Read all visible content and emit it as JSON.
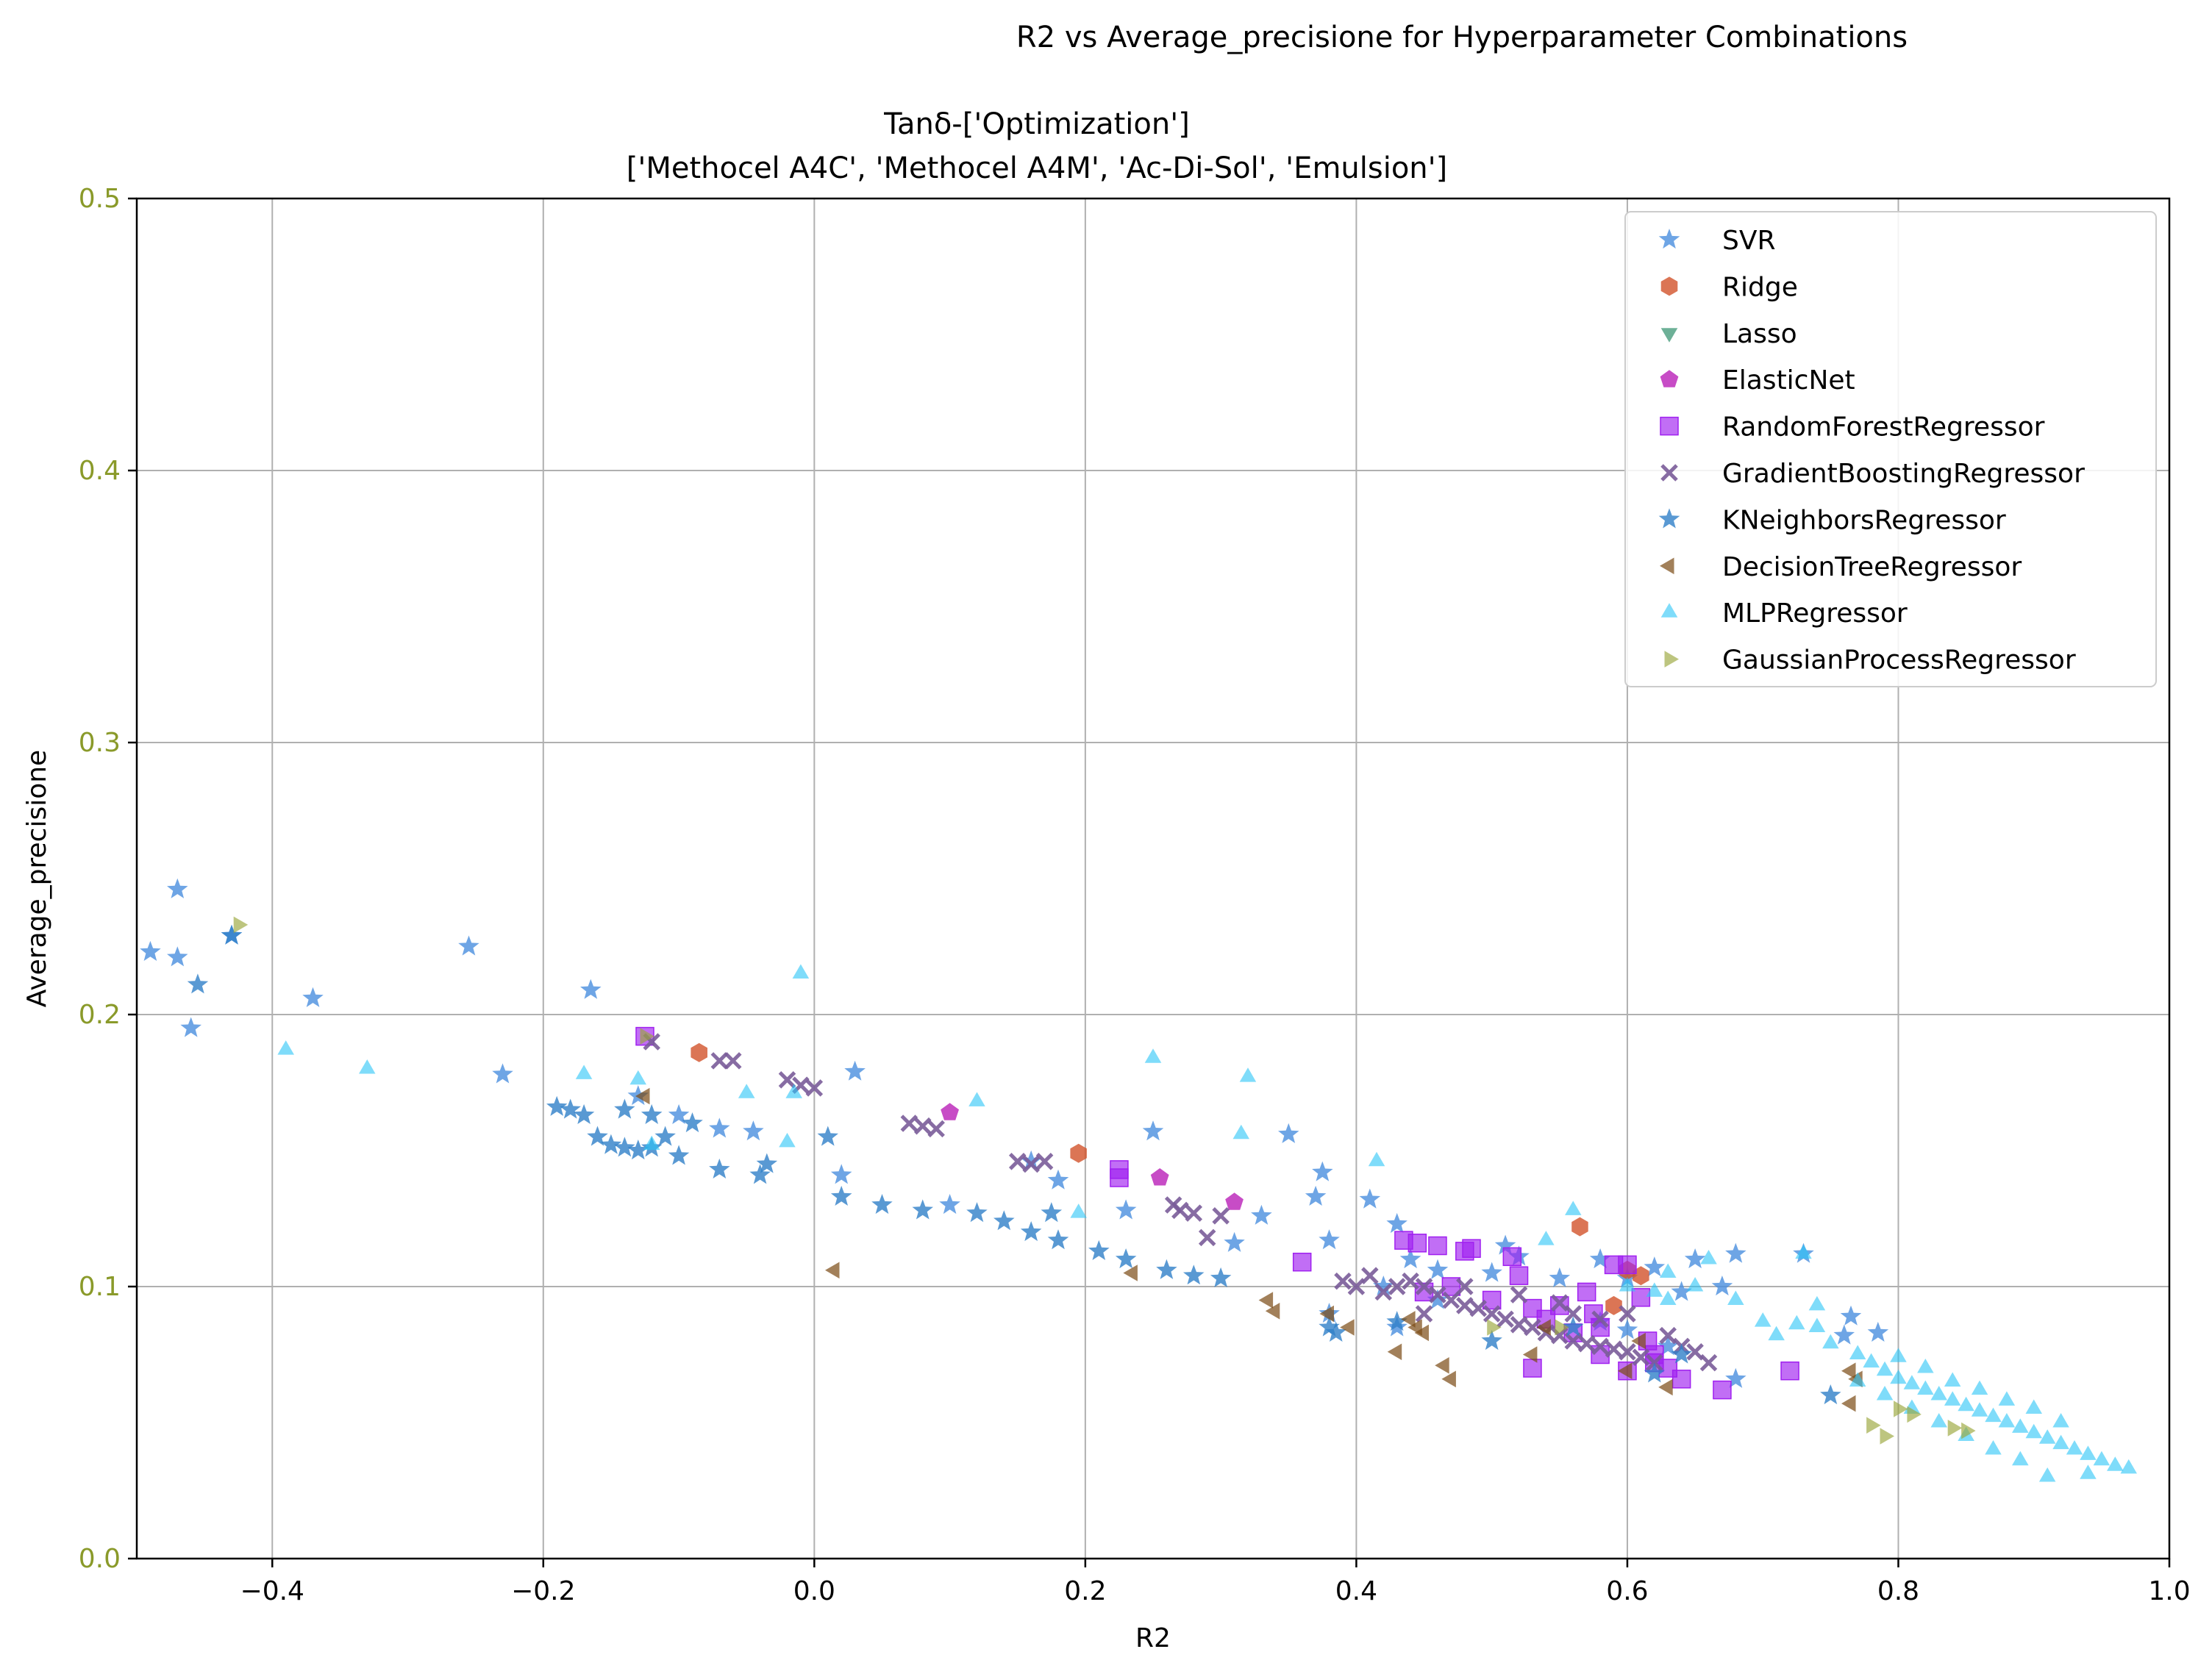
{
  "figure": {
    "suptitle": "R2 vs Average_precisione for Hyperparameter Combinations"
  },
  "chart_data": {
    "type": "scatter",
    "title_line1": "Tanδ-['Optimization']",
    "title_line2": "['Methocel A4C', 'Methocel A4M', 'Ac-Di-Sol', 'Emulsion']",
    "xlabel": "R2",
    "ylabel": "Average_precisione",
    "xlim": [
      -0.5,
      1.0
    ],
    "ylim": [
      0.0,
      0.5
    ],
    "xticks": [
      -0.4,
      -0.2,
      0.0,
      0.2,
      0.4,
      0.6,
      0.8,
      1.0
    ],
    "xtick_labels": [
      "−0.4",
      "−0.2",
      "0.0",
      "0.2",
      "0.4",
      "0.6",
      "0.8",
      "1.0"
    ],
    "yticks": [
      0.0,
      0.1,
      0.2,
      0.3,
      0.4,
      0.5
    ],
    "ytick_labels": [
      "0.0",
      "0.1",
      "0.2",
      "0.3",
      "0.4",
      "0.5"
    ],
    "ytick_color": "#8a9a2a",
    "grid": true,
    "legend_position": "top-right",
    "series": [
      {
        "name": "SVR",
        "marker": "star",
        "color": "#4a8fdf",
        "points": [
          [
            -0.49,
            0.223
          ],
          [
            -0.47,
            0.246
          ],
          [
            -0.47,
            0.221
          ],
          [
            -0.46,
            0.195
          ],
          [
            -0.43,
            0.229
          ],
          [
            -0.37,
            0.206
          ],
          [
            -0.255,
            0.225
          ],
          [
            -0.23,
            0.178
          ],
          [
            -0.165,
            0.209
          ],
          [
            -0.13,
            0.17
          ],
          [
            -0.1,
            0.163
          ],
          [
            -0.07,
            0.158
          ],
          [
            -0.045,
            0.157
          ],
          [
            0.03,
            0.179
          ],
          [
            0.02,
            0.141
          ],
          [
            0.1,
            0.13
          ],
          [
            0.16,
            0.146
          ],
          [
            0.18,
            0.139
          ],
          [
            0.25,
            0.157
          ],
          [
            0.23,
            0.128
          ],
          [
            0.31,
            0.116
          ],
          [
            0.33,
            0.126
          ],
          [
            0.35,
            0.156
          ],
          [
            0.37,
            0.133
          ],
          [
            0.375,
            0.142
          ],
          [
            0.38,
            0.117
          ],
          [
            0.41,
            0.132
          ],
          [
            0.43,
            0.123
          ],
          [
            0.42,
            0.1
          ],
          [
            0.44,
            0.11
          ],
          [
            0.46,
            0.106
          ],
          [
            0.5,
            0.105
          ],
          [
            0.51,
            0.115
          ],
          [
            0.52,
            0.111
          ],
          [
            0.55,
            0.103
          ],
          [
            0.58,
            0.11
          ],
          [
            0.6,
            0.103
          ],
          [
            0.62,
            0.107
          ],
          [
            0.64,
            0.098
          ],
          [
            0.65,
            0.11
          ],
          [
            0.67,
            0.1
          ],
          [
            0.68,
            0.112
          ],
          [
            0.73,
            0.112
          ],
          [
            0.76,
            0.082
          ],
          [
            0.765,
            0.089
          ],
          [
            0.785,
            0.083
          ],
          [
            0.46,
            0.095
          ],
          [
            0.38,
            0.09
          ],
          [
            0.43,
            0.085
          ],
          [
            0.58,
            0.087
          ],
          [
            0.6,
            0.084
          ],
          [
            0.63,
            0.078
          ],
          [
            0.68,
            0.066
          ]
        ]
      },
      {
        "name": "Ridge",
        "marker": "hexagon",
        "color": "#d2522a",
        "points": [
          [
            -0.085,
            0.186
          ],
          [
            0.195,
            0.149
          ],
          [
            0.565,
            0.122
          ],
          [
            0.59,
            0.093
          ],
          [
            0.6,
            0.106
          ],
          [
            0.61,
            0.104
          ]
        ]
      },
      {
        "name": "Lasso",
        "marker": "triangle-down",
        "color": "#2f8e6b",
        "points": []
      },
      {
        "name": "ElasticNet",
        "marker": "pentagon",
        "color": "#b91fb8",
        "points": [
          [
            0.1,
            0.164
          ],
          [
            0.255,
            0.14
          ],
          [
            0.31,
            0.131
          ]
        ]
      },
      {
        "name": "RandomForestRegressor",
        "marker": "square",
        "color": "#a020f0",
        "points": [
          [
            -0.125,
            0.192
          ],
          [
            0.225,
            0.143
          ],
          [
            0.225,
            0.14
          ],
          [
            0.36,
            0.109
          ],
          [
            0.435,
            0.117
          ],
          [
            0.445,
            0.116
          ],
          [
            0.46,
            0.115
          ],
          [
            0.48,
            0.113
          ],
          [
            0.485,
            0.114
          ],
          [
            0.515,
            0.111
          ],
          [
            0.52,
            0.104
          ],
          [
            0.45,
            0.098
          ],
          [
            0.5,
            0.095
          ],
          [
            0.53,
            0.092
          ],
          [
            0.54,
            0.088
          ],
          [
            0.55,
            0.093
          ],
          [
            0.57,
            0.098
          ],
          [
            0.575,
            0.09
          ],
          [
            0.58,
            0.085
          ],
          [
            0.59,
            0.108
          ],
          [
            0.6,
            0.108
          ],
          [
            0.61,
            0.096
          ],
          [
            0.615,
            0.08
          ],
          [
            0.62,
            0.075
          ],
          [
            0.63,
            0.07
          ],
          [
            0.64,
            0.066
          ],
          [
            0.67,
            0.062
          ],
          [
            0.72,
            0.069
          ],
          [
            0.53,
            0.07
          ],
          [
            0.6,
            0.069
          ],
          [
            0.62,
            0.072
          ],
          [
            0.56,
            0.083
          ],
          [
            0.58,
            0.075
          ],
          [
            0.47,
            0.1
          ]
        ]
      },
      {
        "name": "GradientBoostingRegressor",
        "marker": "x",
        "color": "#7a5c99",
        "points": [
          [
            -0.12,
            0.19
          ],
          [
            -0.07,
            0.183
          ],
          [
            -0.06,
            0.183
          ],
          [
            -0.02,
            0.176
          ],
          [
            -0.01,
            0.174
          ],
          [
            0.0,
            0.173
          ],
          [
            0.07,
            0.16
          ],
          [
            0.08,
            0.159
          ],
          [
            0.09,
            0.158
          ],
          [
            0.15,
            0.146
          ],
          [
            0.16,
            0.145
          ],
          [
            0.17,
            0.146
          ],
          [
            0.265,
            0.13
          ],
          [
            0.27,
            0.128
          ],
          [
            0.28,
            0.127
          ],
          [
            0.29,
            0.118
          ],
          [
            0.3,
            0.126
          ],
          [
            0.39,
            0.102
          ],
          [
            0.4,
            0.1
          ],
          [
            0.41,
            0.104
          ],
          [
            0.42,
            0.098
          ],
          [
            0.43,
            0.1
          ],
          [
            0.44,
            0.102
          ],
          [
            0.45,
            0.1
          ],
          [
            0.46,
            0.097
          ],
          [
            0.47,
            0.095
          ],
          [
            0.48,
            0.093
          ],
          [
            0.49,
            0.092
          ],
          [
            0.5,
            0.09
          ],
          [
            0.51,
            0.088
          ],
          [
            0.52,
            0.086
          ],
          [
            0.53,
            0.085
          ],
          [
            0.54,
            0.083
          ],
          [
            0.55,
            0.082
          ],
          [
            0.56,
            0.08
          ],
          [
            0.57,
            0.079
          ],
          [
            0.58,
            0.078
          ],
          [
            0.59,
            0.077
          ],
          [
            0.6,
            0.076
          ],
          [
            0.61,
            0.074
          ],
          [
            0.62,
            0.072
          ],
          [
            0.63,
            0.082
          ],
          [
            0.64,
            0.078
          ],
          [
            0.65,
            0.076
          ],
          [
            0.66,
            0.072
          ],
          [
            0.56,
            0.09
          ],
          [
            0.52,
            0.097
          ],
          [
            0.55,
            0.094
          ],
          [
            0.58,
            0.088
          ],
          [
            0.6,
            0.09
          ],
          [
            0.45,
            0.09
          ],
          [
            0.48,
            0.1
          ]
        ]
      },
      {
        "name": "KNeighborsRegressor",
        "marker": "star",
        "color": "#2f80c8",
        "points": [
          [
            -0.455,
            0.211
          ],
          [
            -0.43,
            0.229
          ],
          [
            -0.19,
            0.166
          ],
          [
            -0.18,
            0.165
          ],
          [
            -0.17,
            0.163
          ],
          [
            -0.16,
            0.155
          ],
          [
            -0.15,
            0.152
          ],
          [
            -0.14,
            0.151
          ],
          [
            -0.13,
            0.15
          ],
          [
            -0.12,
            0.151
          ],
          [
            -0.11,
            0.155
          ],
          [
            -0.1,
            0.148
          ],
          [
            -0.09,
            0.16
          ],
          [
            -0.07,
            0.143
          ],
          [
            -0.04,
            0.141
          ],
          [
            -0.035,
            0.145
          ],
          [
            0.01,
            0.155
          ],
          [
            0.02,
            0.133
          ],
          [
            0.05,
            0.13
          ],
          [
            0.08,
            0.128
          ],
          [
            0.12,
            0.127
          ],
          [
            0.14,
            0.124
          ],
          [
            0.16,
            0.12
          ],
          [
            0.175,
            0.127
          ],
          [
            0.18,
            0.117
          ],
          [
            0.21,
            0.113
          ],
          [
            0.23,
            0.11
          ],
          [
            0.26,
            0.106
          ],
          [
            0.28,
            0.104
          ],
          [
            0.3,
            0.103
          ],
          [
            0.38,
            0.085
          ],
          [
            0.385,
            0.083
          ],
          [
            0.43,
            0.087
          ],
          [
            0.5,
            0.08
          ],
          [
            0.56,
            0.085
          ],
          [
            0.62,
            0.068
          ],
          [
            0.64,
            0.075
          ],
          [
            0.75,
            0.06
          ],
          [
            -0.14,
            0.165
          ],
          [
            -0.12,
            0.163
          ]
        ]
      },
      {
        "name": "DecisionTreeRegressor",
        "marker": "triangle-left",
        "color": "#7a4a14",
        "points": [
          [
            -0.125,
            0.17
          ],
          [
            0.015,
            0.106
          ],
          [
            0.235,
            0.105
          ],
          [
            0.335,
            0.095
          ],
          [
            0.34,
            0.091
          ],
          [
            0.38,
            0.09
          ],
          [
            0.395,
            0.085
          ],
          [
            0.43,
            0.076
          ],
          [
            0.44,
            0.088
          ],
          [
            0.445,
            0.085
          ],
          [
            0.45,
            0.083
          ],
          [
            0.465,
            0.071
          ],
          [
            0.47,
            0.066
          ],
          [
            0.53,
            0.075
          ],
          [
            0.54,
            0.085
          ],
          [
            0.6,
            0.069
          ],
          [
            0.63,
            0.063
          ],
          [
            0.765,
            0.069
          ],
          [
            0.77,
            0.066
          ],
          [
            0.765,
            0.057
          ],
          [
            0.61,
            0.08
          ]
        ]
      },
      {
        "name": "MLPRegressor",
        "marker": "triangle-up",
        "color": "#29c5f6",
        "points": [
          [
            -0.39,
            0.187
          ],
          [
            -0.33,
            0.18
          ],
          [
            -0.17,
            0.178
          ],
          [
            -0.13,
            0.176
          ],
          [
            -0.12,
            0.152
          ],
          [
            -0.05,
            0.171
          ],
          [
            -0.02,
            0.153
          ],
          [
            -0.015,
            0.171
          ],
          [
            -0.01,
            0.215
          ],
          [
            0.12,
            0.168
          ],
          [
            0.195,
            0.127
          ],
          [
            0.25,
            0.184
          ],
          [
            0.315,
            0.156
          ],
          [
            0.32,
            0.177
          ],
          [
            0.415,
            0.146
          ],
          [
            0.54,
            0.117
          ],
          [
            0.56,
            0.128
          ],
          [
            0.62,
            0.098
          ],
          [
            0.63,
            0.095
          ],
          [
            0.66,
            0.11
          ],
          [
            0.68,
            0.095
          ],
          [
            0.7,
            0.087
          ],
          [
            0.71,
            0.082
          ],
          [
            0.725,
            0.086
          ],
          [
            0.74,
            0.093
          ],
          [
            0.74,
            0.085
          ],
          [
            0.75,
            0.079
          ],
          [
            0.77,
            0.075
          ],
          [
            0.78,
            0.072
          ],
          [
            0.79,
            0.069
          ],
          [
            0.8,
            0.066
          ],
          [
            0.81,
            0.064
          ],
          [
            0.82,
            0.062
          ],
          [
            0.83,
            0.06
          ],
          [
            0.84,
            0.058
          ],
          [
            0.85,
            0.056
          ],
          [
            0.86,
            0.054
          ],
          [
            0.87,
            0.052
          ],
          [
            0.88,
            0.05
          ],
          [
            0.89,
            0.048
          ],
          [
            0.9,
            0.046
          ],
          [
            0.91,
            0.044
          ],
          [
            0.92,
            0.042
          ],
          [
            0.93,
            0.04
          ],
          [
            0.94,
            0.038
          ],
          [
            0.95,
            0.036
          ],
          [
            0.96,
            0.034
          ],
          [
            0.97,
            0.033
          ],
          [
            0.8,
            0.074
          ],
          [
            0.82,
            0.07
          ],
          [
            0.84,
            0.065
          ],
          [
            0.86,
            0.062
          ],
          [
            0.88,
            0.058
          ],
          [
            0.9,
            0.055
          ],
          [
            0.92,
            0.05
          ],
          [
            0.85,
            0.045
          ],
          [
            0.87,
            0.04
          ],
          [
            0.89,
            0.036
          ],
          [
            0.83,
            0.05
          ],
          [
            0.81,
            0.055
          ],
          [
            0.79,
            0.06
          ],
          [
            0.77,
            0.065
          ],
          [
            0.91,
            0.03
          ],
          [
            0.94,
            0.031
          ],
          [
            0.63,
            0.105
          ],
          [
            0.65,
            0.1
          ],
          [
            0.73,
            0.112
          ],
          [
            0.6,
            0.1
          ]
        ]
      },
      {
        "name": "GaussianProcessRegressor",
        "marker": "triangle-right",
        "color": "#9aa63a",
        "points": [
          [
            -0.425,
            0.233
          ],
          [
            -0.125,
            0.192
          ],
          [
            0.55,
            0.085
          ],
          [
            0.78,
            0.049
          ],
          [
            0.79,
            0.045
          ],
          [
            0.8,
            0.055
          ],
          [
            0.81,
            0.053
          ],
          [
            0.84,
            0.048
          ],
          [
            0.85,
            0.047
          ],
          [
            0.5,
            0.085
          ]
        ]
      }
    ]
  }
}
